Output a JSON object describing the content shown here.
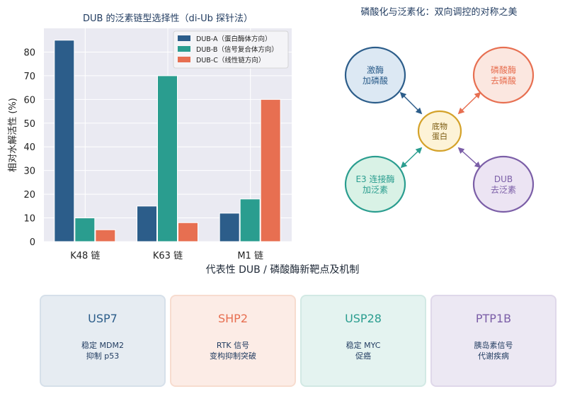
{
  "chart_data": {
    "type": "bar",
    "title": "DUB 的泛素链型选择性（di-Ub 探针法）",
    "xlabel": "",
    "ylabel": "相对水解活性 (%)",
    "categories": [
      "K48 链",
      "K63 链",
      "M1 链"
    ],
    "ylim": [
      0,
      90
    ],
    "yticks": [
      0,
      10,
      20,
      30,
      40,
      50,
      60,
      70,
      80
    ],
    "grid": true,
    "legend_position": "top-right",
    "series": [
      {
        "name": "DUB-A（蛋白酶体方向）",
        "values": [
          85,
          15,
          12
        ],
        "color": "#2c5d8a"
      },
      {
        "name": "DUB-B（信号复合体方向）",
        "values": [
          10,
          70,
          18
        ],
        "color": "#2a9d8f"
      },
      {
        "name": "DUB-C（线性链方向）",
        "values": [
          5,
          8,
          60
        ],
        "color": "#e76f51"
      }
    ]
  },
  "diagram": {
    "title": "磷酸化与泛素化：双向调控的对称之美",
    "center": {
      "label": "底物\n蛋白",
      "fill": "#fdf3d7",
      "stroke": "#d4a22a",
      "text_color": "#7a5a10"
    },
    "nodes": [
      {
        "label": "激酶\n加磷酸",
        "fill": "#dce8f3",
        "stroke": "#2c5d8a",
        "text_color": "#2c5d8a"
      },
      {
        "label": "磷酸酶\n去磷酸",
        "fill": "#fbe7e0",
        "stroke": "#e76f51",
        "text_color": "#e76f51"
      },
      {
        "label": "E3 连接酶\n加泛素",
        "fill": "#d9f2e6",
        "stroke": "#2a9d8f",
        "text_color": "#2a9d8f"
      },
      {
        "label": "DUB\n去泛素",
        "fill": "#ece4f3",
        "stroke": "#7b5ea7",
        "text_color": "#7b5ea7"
      }
    ]
  },
  "targets": {
    "title": "代表性 DUB / 磷酸酶新靶点及机制",
    "cards": [
      {
        "name": "USP7",
        "desc": "稳定 MDM2\n抑制 p53",
        "color": "#2c5d8a",
        "bg": "#e6ecf2",
        "border": "#d6e0ea"
      },
      {
        "name": "SHP2",
        "desc": "RTK 信号\n变构抑制突破",
        "color": "#e76f51",
        "bg": "#fcece6",
        "border": "#f7dccf"
      },
      {
        "name": "USP28",
        "desc": "稳定 MYC\n促癌",
        "color": "#2a9d8f",
        "bg": "#e4f3f0",
        "border": "#d2e9e4"
      },
      {
        "name": "PTP1B",
        "desc": "胰岛素信号\n代谢疾病",
        "color": "#7b5ea7",
        "bg": "#ece8f3",
        "border": "#dfd8ea"
      }
    ]
  }
}
